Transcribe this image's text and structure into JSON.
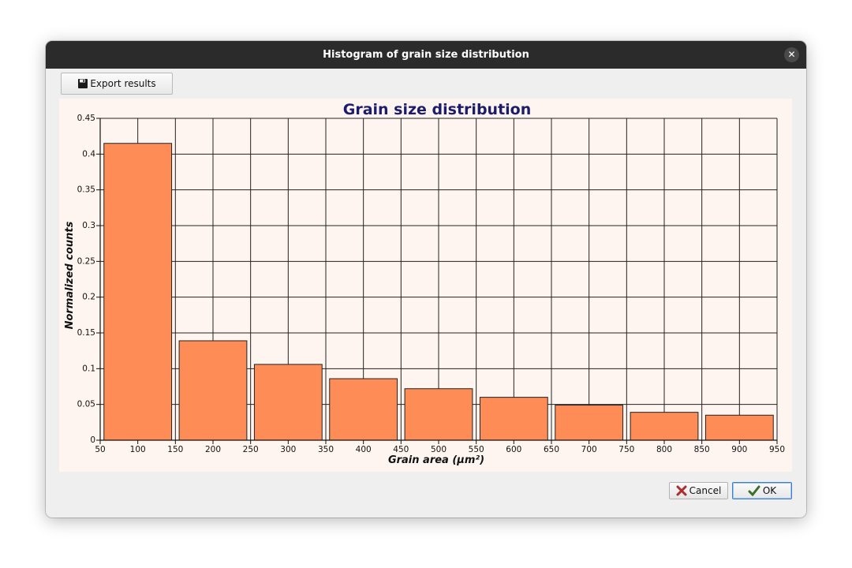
{
  "window": {
    "title": "Histogram of grain size distribution"
  },
  "toolbar": {
    "export_label": "Export results"
  },
  "buttons": {
    "cancel_label": "Cancel",
    "ok_label": "OK"
  },
  "icons": [
    "save-icon",
    "close-icon",
    "cancel-x-icon",
    "ok-check-icon"
  ],
  "colors": {
    "bar_fill": "#fd8c57",
    "plot_background": "#fff5f0",
    "title_color": "#1c1c6e",
    "titlebar": "#2b2b2b"
  },
  "chart_data": {
    "type": "bar",
    "title": "Grain size distribution",
    "xlabel": "Grain area (µm²)",
    "ylabel": "Normalized counts",
    "xlim": [
      50,
      950
    ],
    "ylim": [
      0,
      0.45
    ],
    "x_ticks": [
      "50",
      "100",
      "150",
      "200",
      "250",
      "300",
      "350",
      "400",
      "450",
      "500",
      "550",
      "600",
      "650",
      "700",
      "750",
      "800",
      "850",
      "900",
      "950"
    ],
    "y_ticks": [
      "0",
      "0.05",
      "0.1",
      "0.15",
      "0.2",
      "0.25",
      "0.3",
      "0.35",
      "0.4",
      "0.45"
    ],
    "grid": true,
    "bins": [
      {
        "center": 100,
        "value": 0.415
      },
      {
        "center": 200,
        "value": 0.139
      },
      {
        "center": 300,
        "value": 0.106
      },
      {
        "center": 400,
        "value": 0.086
      },
      {
        "center": 500,
        "value": 0.072
      },
      {
        "center": 600,
        "value": 0.06
      },
      {
        "center": 700,
        "value": 0.049
      },
      {
        "center": 800,
        "value": 0.039
      },
      {
        "center": 900,
        "value": 0.035
      }
    ]
  }
}
